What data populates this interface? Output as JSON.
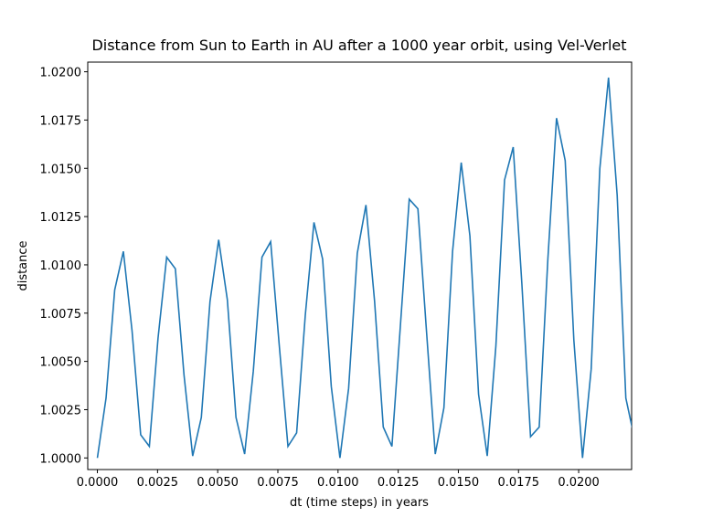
{
  "chart_data": {
    "type": "line",
    "title": "Distance from Sun to Earth in AU after a 1000 year orbit, using Vel-Verlet",
    "xlabel": "dt (time steps) in years",
    "ylabel": "distance",
    "x": [
      0,
      0.00036,
      0.00072,
      0.00108,
      0.00144,
      0.0018,
      0.00216,
      0.00252,
      0.00288,
      0.00324,
      0.0036,
      0.00396,
      0.00432,
      0.00468,
      0.00504,
      0.0054,
      0.00576,
      0.00612,
      0.00648,
      0.00684,
      0.0072,
      0.00756,
      0.00792,
      0.00828,
      0.00864,
      0.009,
      0.00936,
      0.00972,
      0.01008,
      0.01044,
      0.0108,
      0.01116,
      0.01152,
      0.01188,
      0.01224,
      0.0126,
      0.01296,
      0.01332,
      0.01368,
      0.01404,
      0.0144,
      0.01476,
      0.01512,
      0.01548,
      0.01584,
      0.0162,
      0.01656,
      0.01692,
      0.01728,
      0.01764,
      0.018,
      0.01836,
      0.01872,
      0.01908,
      0.01944,
      0.0198,
      0.02016,
      0.02052,
      0.02088,
      0.02124,
      0.0216,
      0.02196,
      0.02232
    ],
    "series": [
      {
        "name": "distance",
        "color": "#1f77b4",
        "values": [
          1.0,
          1.0031,
          1.0087,
          1.0107,
          1.0066,
          1.0012,
          1.0006,
          1.0062,
          1.0104,
          1.0098,
          1.0043,
          1.0001,
          1.0021,
          1.0081,
          1.0113,
          1.0082,
          1.0021,
          1.0002,
          1.0045,
          1.0104,
          1.0112,
          1.0058,
          1.0006,
          1.0013,
          1.0074,
          1.0122,
          1.0103,
          1.0037,
          1.0,
          1.0036,
          1.0106,
          1.0131,
          1.0081,
          1.0016,
          1.0006,
          1.007,
          1.0134,
          1.0129,
          1.0065,
          1.0002,
          1.0026,
          1.0107,
          1.0153,
          1.0115,
          1.0033,
          1.0001,
          1.0058,
          1.0144,
          1.0161,
          1.009,
          1.0011,
          1.0016,
          1.0103,
          1.0176,
          1.0154,
          1.0061,
          1.0,
          1.0046,
          1.015,
          1.0197,
          1.0136,
          1.0031,
          1.001
        ]
      }
    ],
    "xlim": [
      -0.0004,
      0.0222
    ],
    "ylim": [
      0.9994,
      1.0205
    ],
    "xticks": [
      {
        "value": 0,
        "label": "0.0000"
      },
      {
        "value": 0.0025,
        "label": "0.0025"
      },
      {
        "value": 0.005,
        "label": "0.0050"
      },
      {
        "value": 0.0075,
        "label": "0.0075"
      },
      {
        "value": 0.01,
        "label": "0.0100"
      },
      {
        "value": 0.0125,
        "label": "0.0125"
      },
      {
        "value": 0.015,
        "label": "0.0150"
      },
      {
        "value": 0.0175,
        "label": "0.0175"
      },
      {
        "value": 0.02,
        "label": "0.0200"
      }
    ],
    "yticks": [
      {
        "value": 1,
        "label": "1.0000"
      },
      {
        "value": 1.0025,
        "label": "1.0025"
      },
      {
        "value": 1.005,
        "label": "1.0050"
      },
      {
        "value": 1.0075,
        "label": "1.0075"
      },
      {
        "value": 1.01,
        "label": "1.0100"
      },
      {
        "value": 1.0125,
        "label": "1.0125"
      },
      {
        "value": 1.015,
        "label": "1.0150"
      },
      {
        "value": 1.0175,
        "label": "1.0175"
      },
      {
        "value": 1.02,
        "label": "1.0200"
      }
    ],
    "grid": false
  }
}
